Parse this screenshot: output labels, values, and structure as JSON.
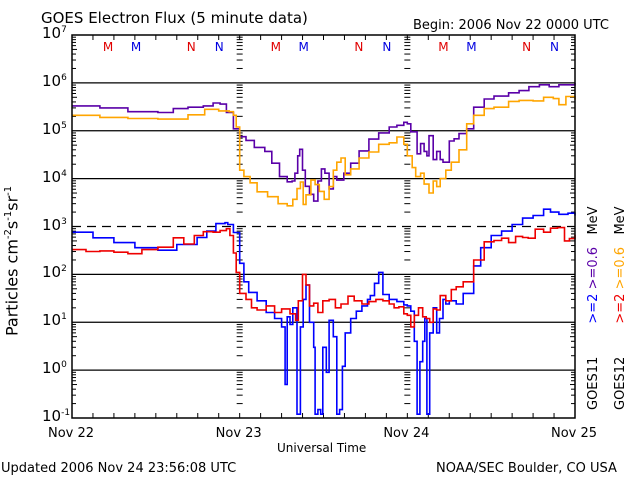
{
  "header": {
    "title": "GOES Electron Flux (5 minute data)",
    "begin": "Begin: 2006 Nov 22 0000 UTC"
  },
  "footer": {
    "updated": "Updated 2006 Nov 24 23:56:08 UTC",
    "source": "NOAA/SEC Boulder, CO USA"
  },
  "chart_data": {
    "type": "line",
    "title": "GOES Electron Flux (5 minute data)",
    "xlabel": "Universal Time",
    "ylabel": "Particles cm-2s-1sr-1",
    "ylabel_parts": {
      "base": "Particles cm",
      "e1": "-2",
      "s": "s",
      "e2": "-1",
      "sr": "sr",
      "e3": "-1"
    },
    "yscale": "log",
    "ylim": [
      0.1,
      10000000
    ],
    "xlim_hours": [
      0,
      72
    ],
    "x_unit": "hours since 2006 Nov 22 0000 UTC",
    "x_ticks": [
      {
        "hour": 0,
        "label": "Nov 22"
      },
      {
        "hour": 24,
        "label": "Nov 23"
      },
      {
        "hour": 48,
        "label": "Nov 24"
      },
      {
        "hour": 72,
        "label": "Nov 25"
      }
    ],
    "y_ticks": [
      {
        "exp": 7,
        "base": "10",
        "sup": "7"
      },
      {
        "exp": 6,
        "base": "10",
        "sup": "6"
      },
      {
        "exp": 5,
        "base": "10",
        "sup": "5"
      },
      {
        "exp": 4,
        "base": "10",
        "sup": "4"
      },
      {
        "exp": 3,
        "base": "10",
        "sup": "3"
      },
      {
        "exp": 2,
        "base": "10",
        "sup": "2"
      },
      {
        "exp": 1,
        "base": "10",
        "sup": "1"
      },
      {
        "exp": 0,
        "base": "10",
        "sup": "0"
      },
      {
        "exp": -1,
        "base": "10",
        "sup": "-1"
      }
    ],
    "solid_gridlines": [
      1000000,
      100000,
      10000,
      100,
      10,
      1
    ],
    "dashed_gridlines": [
      1000
    ],
    "grid": true,
    "markers": [
      {
        "hour": 5,
        "label": "M",
        "color": "#e00000"
      },
      {
        "hour": 9,
        "label": "M",
        "color": "#0000e0"
      },
      {
        "hour": 17,
        "label": "N",
        "color": "#e00000"
      },
      {
        "hour": 21,
        "label": "N",
        "color": "#0000e0"
      },
      {
        "hour": 29,
        "label": "M",
        "color": "#e00000"
      },
      {
        "hour": 33,
        "label": "M",
        "color": "#0000e0"
      },
      {
        "hour": 41,
        "label": "N",
        "color": "#e00000"
      },
      {
        "hour": 45,
        "label": "N",
        "color": "#0000e0"
      },
      {
        "hour": 53,
        "label": "M",
        "color": "#e00000"
      },
      {
        "hour": 57,
        "label": "M",
        "color": "#0000e0"
      },
      {
        "hour": 65,
        "label": "N",
        "color": "#e00000"
      },
      {
        "hour": 69,
        "label": "N",
        "color": "#0000e0"
      }
    ],
    "legend": {
      "placement": "right",
      "columns": [
        {
          "satellite": "GOES11",
          "low": ">=2",
          "low_color": "#0000ff",
          "high": ">=0.6",
          "high_color": "#5a00a8",
          "unit": "MeV"
        },
        {
          "satellite": "GOES12",
          "low": ">=2",
          "low_color": "#ee0000",
          "high": ">=0.6",
          "high_color": "#ffa500",
          "unit": "MeV"
        }
      ]
    },
    "series": [
      {
        "name": "GOES11 >=0.6 MeV",
        "color": "#5a00a8",
        "x": [
          0,
          4,
          8,
          12.3,
          14.5,
          16.6,
          18.8,
          20.2,
          21.2,
          22.1,
          23.1,
          24,
          24.9,
          26.1,
          27.6,
          28.6,
          29.7,
          30.8,
          31.5,
          31.9,
          32.3,
          32.6,
          33,
          33.4,
          34,
          34.6,
          35.2,
          35.7,
          36.2,
          36.8,
          37.4,
          37.9,
          38.9,
          39.9,
          41.1,
          42.5,
          43.9,
          45.4,
          46.5,
          47.5,
          48,
          48.5,
          49.4,
          49.9,
          50.4,
          50.8,
          51.1,
          51.7,
          52.2,
          52.7,
          53.1,
          54,
          54.7,
          55.4,
          56.5,
          57.5,
          59,
          60.4,
          62.5,
          64,
          65.4,
          66.9,
          68.3,
          69.7,
          72
        ],
        "y": [
          330000,
          300000,
          250000,
          240000,
          290000,
          310000,
          330000,
          380000,
          360000,
          240000,
          110000,
          75000,
          63000,
          45000,
          37000,
          21000,
          11000,
          8600,
          8900,
          13000,
          30000,
          41000,
          15000,
          6900,
          4700,
          3400,
          8900,
          16000,
          13000,
          6100,
          11000,
          9300,
          13000,
          21000,
          38000,
          67000,
          90000,
          120000,
          130000,
          150000,
          140000,
          95000,
          33000,
          54000,
          37000,
          30000,
          79000,
          25000,
          37000,
          25000,
          22000,
          61000,
          68000,
          87000,
          110000,
          310000,
          460000,
          530000,
          620000,
          690000,
          830000,
          910000,
          830000,
          910000,
          1000000
        ]
      },
      {
        "name": "GOES12 >=0.6 MeV",
        "color": "#ffa500",
        "x": [
          0,
          4,
          8,
          12.3,
          16.6,
          19,
          21,
          22.5,
          23.1,
          23.5,
          24,
          24.6,
          25.5,
          26.5,
          28,
          29.5,
          30.8,
          31.6,
          32.2,
          32.7,
          33.1,
          33.5,
          34.2,
          34.8,
          35.4,
          36.1,
          36.8,
          37.4,
          37.9,
          38.5,
          39.1,
          39.9,
          41.1,
          42.5,
          43.9,
          45.4,
          46.5,
          47.5,
          48,
          48.7,
          49.2,
          49.9,
          50.4,
          51.1,
          51.7,
          52.2,
          52.7,
          53.5,
          54.3,
          55.4,
          56.5,
          57.5,
          59,
          60.4,
          62.5,
          64,
          66,
          67.5,
          68.9,
          69.7,
          70.7,
          72
        ],
        "y": [
          210000,
          190000,
          180000,
          175000,
          215000,
          280000,
          260000,
          250000,
          210000,
          120000,
          15000,
          11000,
          8200,
          5300,
          4200,
          3000,
          2700,
          3700,
          6200,
          8500,
          2900,
          4600,
          9300,
          7500,
          5400,
          3700,
          6800,
          15000,
          22000,
          27000,
          12000,
          16000,
          27000,
          36000,
          52000,
          56000,
          74000,
          52000,
          30000,
          17000,
          11000,
          13000,
          7700,
          5000,
          8900,
          6800,
          10000,
          15000,
          22000,
          40000,
          140000,
          210000,
          290000,
          310000,
          410000,
          430000,
          420000,
          500000,
          470000,
          350000,
          520000,
          450000
        ]
      },
      {
        "name": "GOES11 >=2 MeV",
        "color": "#0000ff",
        "x": [
          0,
          3,
          6,
          9,
          12.3,
          15,
          17.9,
          19.3,
          20.6,
          21.9,
          22.3,
          23.1,
          24,
          24.6,
          25.3,
          26.5,
          27.8,
          29,
          30,
          30.5,
          30.8,
          31.2,
          31.6,
          32.2,
          32.7,
          33.1,
          33.5,
          34,
          34.6,
          34.8,
          35.2,
          35.6,
          35.9,
          36.4,
          36.8,
          37.4,
          37.9,
          38.3,
          38.7,
          39.1,
          39.9,
          40.7,
          41.5,
          42.3,
          42.7,
          43.3,
          43.9,
          44.5,
          45.4,
          46.5,
          47.5,
          48,
          48.5,
          49,
          49.4,
          49.8,
          50.2,
          50.5,
          50.8,
          51.2,
          51.7,
          52.2,
          52.6,
          53.1,
          53.5,
          54,
          55,
          56,
          57.5,
          58.5,
          60,
          61.5,
          63,
          64.5,
          66,
          67.5,
          68.5,
          69.7,
          71,
          72
        ],
        "y": [
          760,
          580,
          460,
          360,
          320,
          420,
          590,
          800,
          1150,
          1200,
          1100,
          750,
          170,
          70,
          42,
          28,
          16,
          12,
          8,
          0.5,
          13,
          9,
          20,
          0.12,
          8,
          30,
          60,
          10,
          3,
          0.12,
          0.15,
          0.12,
          3,
          0.9,
          11,
          5,
          0.12,
          0.15,
          1.2,
          6,
          12,
          17,
          22,
          30,
          36,
          65,
          110,
          38,
          30,
          27,
          23,
          22,
          17,
          4,
          0.12,
          1.5,
          4,
          12,
          0.12,
          6,
          20,
          6,
          12,
          30,
          24,
          28,
          24,
          40,
          150,
          360,
          650,
          800,
          1100,
          1500,
          1700,
          2300,
          2000,
          1800,
          1900,
          1700
        ]
      },
      {
        "name": "GOES12 >=2 MeV",
        "color": "#ee0000",
        "x": [
          0,
          2,
          4,
          6,
          8,
          10,
          12.3,
          14.5,
          16,
          17.5,
          18.8,
          20.2,
          21.2,
          22.1,
          22.6,
          23.1,
          23.5,
          24,
          24.9,
          25.7,
          26.5,
          27.8,
          29,
          30,
          31.2,
          32,
          32.4,
          33,
          33.5,
          34,
          34.6,
          35.2,
          35.9,
          36.8,
          37.7,
          38.5,
          39.5,
          40.4,
          41.5,
          42.5,
          43.5,
          44.5,
          45.4,
          46.1,
          46.8,
          47.5,
          48,
          48.5,
          49,
          49.6,
          50.2,
          50.7,
          51.2,
          51.7,
          52.2,
          52.7,
          53.5,
          54.3,
          55,
          56,
          57.5,
          59,
          60.4,
          61.5,
          62.5,
          63.5,
          64.5,
          65.3,
          66.3,
          67.5,
          68.5,
          69.5,
          70.5,
          71.2,
          72
        ],
        "y": [
          330,
          300,
          310,
          290,
          270,
          330,
          370,
          580,
          430,
          650,
          780,
          760,
          820,
          900,
          650,
          280,
          110,
          40,
          30,
          20,
          18,
          22,
          16,
          19,
          15,
          11,
          28,
          100,
          60,
          22,
          25,
          16,
          28,
          30,
          20,
          24,
          35,
          28,
          24,
          27,
          30,
          28,
          24,
          20,
          21,
          15,
          14,
          8,
          14,
          20,
          13,
          12,
          10,
          19,
          18,
          36,
          28,
          48,
          55,
          70,
          200,
          480,
          510,
          570,
          460,
          620,
          590,
          570,
          880,
          760,
          920,
          950,
          500,
          560,
          670
        ]
      }
    ]
  }
}
